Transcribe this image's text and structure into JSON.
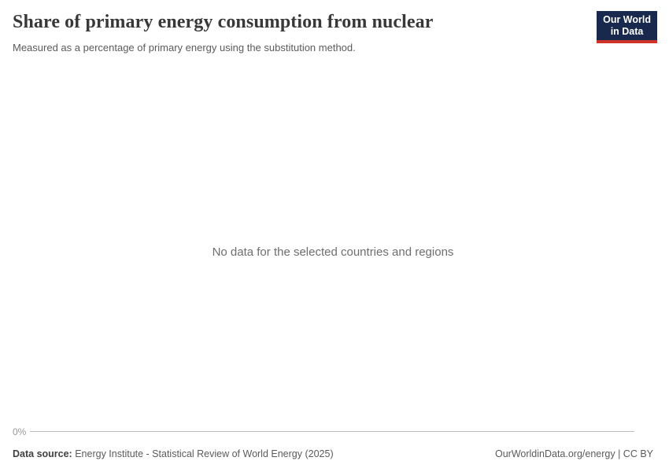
{
  "header": {
    "title": "Share of primary energy consumption from nuclear",
    "subtitle": "Measured as a percentage of primary energy using the substitution method.",
    "logo": {
      "line1": "Our World",
      "line2": "in Data"
    }
  },
  "chart": {
    "no_data_message": "No data for the selected countries and regions",
    "y_axis_tick": "0%"
  },
  "footer": {
    "data_source_label": "Data source:",
    "data_source_value": "Energy Institute - Statistical Review of World Energy (2025)",
    "attribution": "OurWorldinData.org/energy | CC BY"
  },
  "colors": {
    "logo_navy": "#18294d",
    "logo_red": "#cf3229",
    "title_text": "#383838",
    "subtitle_text": "#5b5b5b",
    "no_data_text": "#6e6e6e",
    "axis_tick_text": "#999999",
    "axis_line": "#bdbdbd",
    "footer_text": "#5b5b5b"
  },
  "chart_data": {
    "type": "line",
    "title": "Share of primary energy consumption from nuclear",
    "subtitle": "Measured as a percentage of primary energy using the substitution method.",
    "x": [],
    "series": [],
    "xlabel": "",
    "ylabel": "",
    "visible_y_ticks": [
      "0%"
    ],
    "grid": false,
    "legend": "none",
    "annotations": [
      "No data for the selected countries and regions"
    ]
  }
}
